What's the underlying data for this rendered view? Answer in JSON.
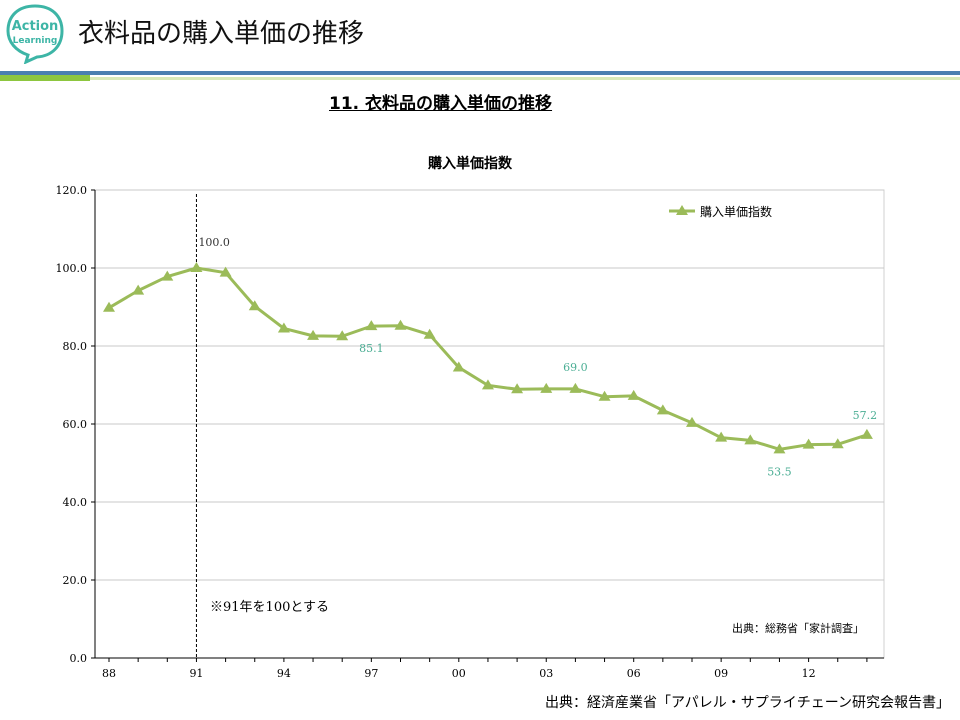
{
  "header": {
    "logo_line1": "Action",
    "logo_line2": "Learning",
    "title": "衣料品の購入単価の推移"
  },
  "slide": {
    "title": "11. 衣料品の購入単価の推移"
  },
  "footer": {
    "source": "出典：経済産業省「アパレル・サプライチェーン研究会報告書」"
  },
  "colors": {
    "series": "#9BBB59",
    "label": "#4BAE94",
    "accent_teal": "#3DB5A6",
    "rule_blue": "#4A7FB0",
    "rule_green": "#8DC63F"
  },
  "chart_data": {
    "type": "line",
    "title": "購入単価指数",
    "ylim": [
      0,
      120
    ],
    "y_ticks": [
      0,
      20,
      40,
      60,
      80,
      100,
      120
    ],
    "y_tick_labels": [
      "0.0",
      "20.0",
      "40.0",
      "60.0",
      "80.0",
      "100.0",
      "120.0"
    ],
    "x": [
      1988,
      1989,
      1990,
      1991,
      1992,
      1993,
      1994,
      1995,
      1996,
      1997,
      1998,
      1999,
      2000,
      2001,
      2002,
      2003,
      2004,
      2005,
      2006,
      2007,
      2008,
      2009,
      2010,
      2011,
      2012,
      2013,
      2014
    ],
    "x_ticks": [
      1988,
      1991,
      1994,
      1997,
      2000,
      2003,
      2006,
      2009,
      2012
    ],
    "x_tick_labels": [
      "88",
      "91",
      "94",
      "97",
      "00",
      "03",
      "06",
      "09",
      "12"
    ],
    "series": [
      {
        "name": "購入単価指数",
        "values": [
          89.8,
          94.2,
          97.8,
          100.0,
          98.8,
          90.2,
          84.5,
          82.6,
          82.5,
          85.1,
          85.2,
          82.9,
          74.5,
          69.9,
          68.9,
          69.0,
          69.0,
          67.0,
          67.2,
          63.5,
          60.3,
          56.5,
          55.8,
          53.5,
          54.7,
          54.8,
          57.2
        ]
      }
    ],
    "data_labels": [
      {
        "x": 1991,
        "text": "100.0"
      },
      {
        "x": 1997,
        "text": "85.1"
      },
      {
        "x": 2004,
        "text": "69.0"
      },
      {
        "x": 2011,
        "text": "53.5"
      },
      {
        "x": 2014,
        "text": "57.2"
      }
    ],
    "reference_line_x": 1991,
    "annotations": {
      "note": "※91年を100とする",
      "source": "出典：総務省「家計調査」"
    },
    "legend": {
      "label": "購入単価指数",
      "position": "top-right"
    }
  }
}
